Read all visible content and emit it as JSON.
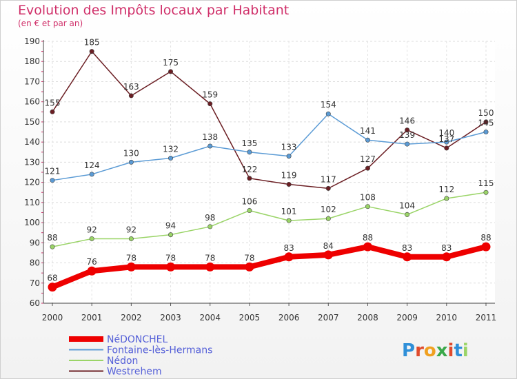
{
  "header": {
    "title": "Evolution des Impôts locaux par Habitant",
    "subtitle": "(en € et par an)"
  },
  "logo": {
    "text": "Proxiti"
  },
  "chart_data": {
    "type": "line",
    "x": [
      "2000",
      "2001",
      "2002",
      "2003",
      "2004",
      "2005",
      "2006",
      "2007",
      "2008",
      "2009",
      "2010",
      "2011"
    ],
    "ylim": [
      60,
      190
    ],
    "yticks": [
      60,
      70,
      80,
      90,
      100,
      110,
      120,
      130,
      140,
      150,
      160,
      170,
      180,
      190
    ],
    "grid": true,
    "legend_position": "bottom-left",
    "series": [
      {
        "name": "Westrehem",
        "color": "#6b1e23",
        "values": [
          155,
          185,
          163,
          175,
          159,
          122,
          119,
          117,
          127,
          146,
          137,
          150
        ],
        "labels": [
          "155",
          "185",
          "163",
          "175",
          "159",
          "122",
          "119",
          "117",
          "127",
          "146",
          "137",
          "150"
        ]
      },
      {
        "name": "Fontaine-lès-Hermans",
        "color": "#5b9bd5",
        "values": [
          121,
          124,
          130,
          132,
          138,
          135,
          133,
          154,
          141,
          139,
          140,
          145
        ],
        "labels": [
          "121",
          "124",
          "130",
          "132",
          "138",
          "135",
          "133",
          "154",
          "141",
          "139",
          "140",
          "145"
        ]
      },
      {
        "name": "Nédon",
        "color": "#9ad467",
        "values": [
          88,
          92,
          92,
          94,
          98,
          106,
          101,
          102,
          108,
          104,
          112,
          115
        ],
        "labels": [
          "88",
          "92",
          "92",
          "94",
          "98",
          "106",
          "101",
          "102",
          "108",
          "104",
          "112",
          "115"
        ]
      },
      {
        "name": "NéDONCHEL",
        "color": "#ee0000",
        "values": [
          68,
          76,
          78,
          78,
          78,
          78,
          83,
          84,
          88,
          83,
          83,
          88
        ],
        "labels": [
          "68",
          "76",
          "78",
          "78",
          "78",
          "78",
          "83",
          "84",
          "88",
          "83",
          "83",
          "88"
        ]
      }
    ],
    "legend": [
      "NéDONCHEL",
      "Fontaine-lès-Hermans",
      "Nédon",
      "Westrehem"
    ],
    "legend_text_color": "#5560d8"
  }
}
